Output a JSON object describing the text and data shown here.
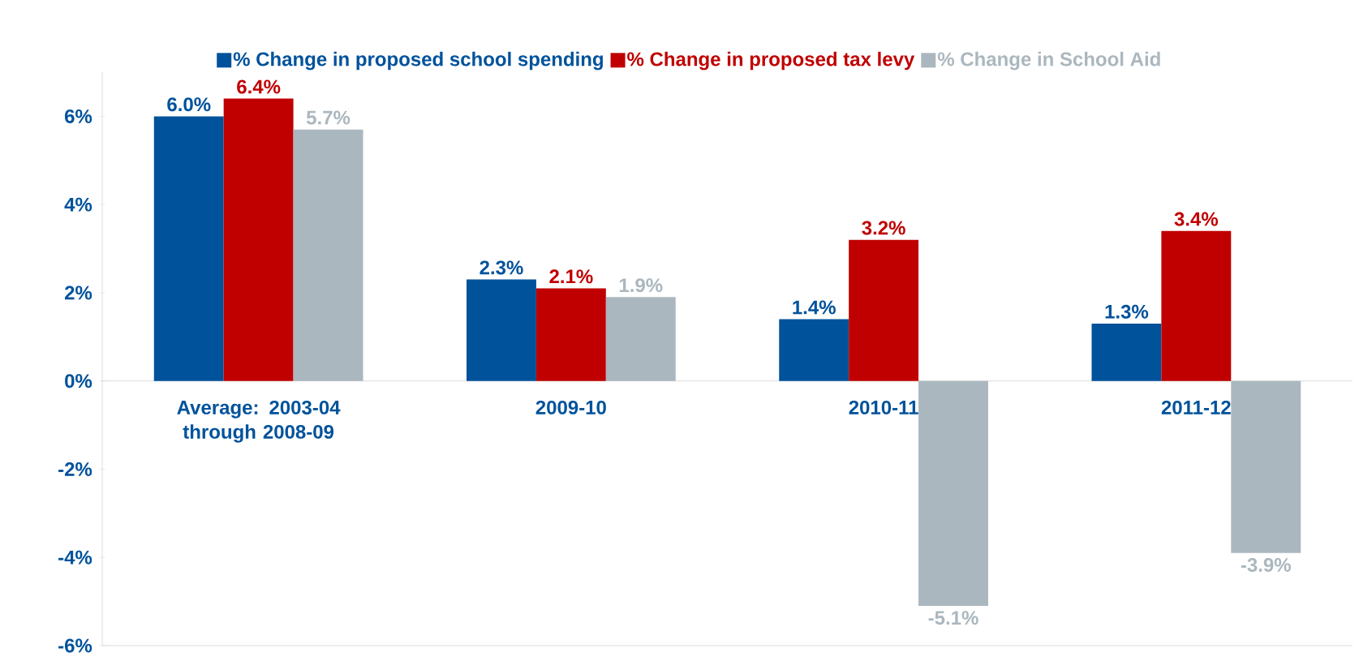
{
  "chart_data": {
    "type": "bar",
    "categories": [
      "Average:  2003-04 through 2008-09",
      "2009-10",
      "2010-11",
      "2011-12"
    ],
    "series": [
      {
        "name": "% Change in proposed school spending",
        "color": "#00529b",
        "values": [
          6.0,
          2.3,
          1.4,
          1.3
        ],
        "value_labels": [
          "6.0%",
          "2.3%",
          "1.4%",
          "1.3%"
        ]
      },
      {
        "name": "% Change in proposed tax levy",
        "color": "#c00000",
        "values": [
          6.4,
          2.1,
          3.2,
          3.4
        ],
        "value_labels": [
          "6.4%",
          "2.1%",
          "3.2%",
          "3.4%"
        ]
      },
      {
        "name": "% Change in School Aid",
        "color": "#abb7be",
        "values": [
          5.7,
          1.9,
          -5.1,
          -3.9
        ],
        "value_labels": [
          "5.7%",
          "1.9%",
          "-5.1%",
          "-3.9%"
        ]
      }
    ],
    "ylim": [
      -6,
      7
    ],
    "yticks": [
      {
        "value": -6,
        "label": "-6%"
      },
      {
        "value": -4,
        "label": "-4%"
      },
      {
        "value": -2,
        "label": "-2%"
      },
      {
        "value": 0,
        "label": "0%"
      },
      {
        "value": 2,
        "label": "2%"
      },
      {
        "value": 4,
        "label": "4%"
      },
      {
        "value": 6,
        "label": "6%"
      }
    ],
    "legend": "top"
  }
}
